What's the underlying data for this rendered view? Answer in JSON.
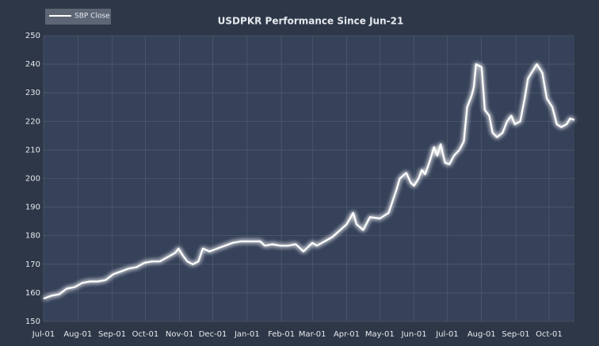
{
  "chart_data": {
    "type": "line",
    "title": "USDPKR Performance Since Jun-21",
    "x": [
      0,
      7,
      14,
      21,
      28,
      35,
      42,
      49,
      56,
      63,
      70,
      77,
      84,
      91,
      98,
      105,
      112,
      119,
      122,
      126,
      130,
      135,
      140,
      144,
      150,
      157,
      164,
      171,
      178,
      185,
      192,
      196,
      200,
      207,
      214,
      221,
      228,
      235,
      243,
      247,
      261,
      274,
      280,
      283,
      289,
      295,
      304,
      312,
      319,
      322,
      328,
      332,
      335,
      339,
      342,
      345,
      350,
      353,
      356,
      359,
      363,
      367,
      371,
      376,
      380,
      383,
      387,
      389,
      391,
      396,
      399,
      403,
      406,
      410,
      415,
      419,
      423,
      426,
      431,
      435,
      438,
      442,
      446,
      451,
      455,
      460,
      464,
      468,
      473,
      476,
      480
    ],
    "series": [
      {
        "name": "SBP Close",
        "color": "#ffffff",
        "values": [
          158,
          159,
          159.5,
          161.5,
          162,
          163.5,
          164,
          164,
          164.5,
          166.5,
          167.5,
          168.5,
          169,
          170.5,
          171,
          171,
          172.5,
          174,
          175.5,
          173,
          171,
          170,
          171,
          175.5,
          174.5,
          175.5,
          176.5,
          177.5,
          178,
          178,
          178,
          178,
          176.5,
          177,
          176.5,
          176.5,
          177,
          174.5,
          177.5,
          176.5,
          179.5,
          184,
          188,
          184,
          182,
          186.5,
          186,
          188,
          196,
          200,
          202,
          198.5,
          197.5,
          200,
          203,
          201.5,
          207,
          211,
          208,
          212,
          205.5,
          205,
          208,
          210,
          213,
          225,
          229,
          232,
          240,
          239,
          224,
          222,
          216,
          214.5,
          216,
          220,
          222,
          219,
          220,
          228,
          235,
          237.5,
          240,
          237,
          228,
          225,
          219,
          218,
          219,
          221,
          220.5
        ]
      }
    ],
    "xlim": [
      0,
      480
    ],
    "xticks": [
      {
        "value": 0,
        "label": "Jul-01"
      },
      {
        "value": 31,
        "label": "Aug-01"
      },
      {
        "value": 62,
        "label": "Sep-01"
      },
      {
        "value": 92,
        "label": "Oct-01"
      },
      {
        "value": 123,
        "label": "Nov-01"
      },
      {
        "value": 153,
        "label": "Dec-01"
      },
      {
        "value": 184,
        "label": "Jan-01"
      },
      {
        "value": 215,
        "label": "Feb-01"
      },
      {
        "value": 243,
        "label": "Mar-01"
      },
      {
        "value": 274,
        "label": "Apr-01"
      },
      {
        "value": 304,
        "label": "May-01"
      },
      {
        "value": 335,
        "label": "Jun-01"
      },
      {
        "value": 365,
        "label": "Jul-01"
      },
      {
        "value": 396,
        "label": "Aug-01"
      },
      {
        "value": 427,
        "label": "Sep-01"
      },
      {
        "value": 457,
        "label": "Oct-01"
      }
    ],
    "ylim": [
      150,
      250
    ],
    "yticks": [
      150,
      160,
      170,
      180,
      190,
      200,
      210,
      220,
      230,
      240,
      250
    ],
    "grid": true,
    "legend": "upper left"
  }
}
